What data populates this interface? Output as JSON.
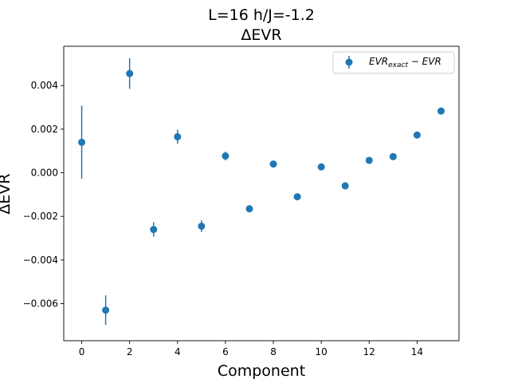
{
  "chart_data": {
    "type": "scatter",
    "title_line1": "L=16 h/J=-1.2",
    "title_line2": "ΔEVR",
    "xlabel": "Component",
    "ylabel": "ΔEVR",
    "xlim": [
      -0.75,
      15.75
    ],
    "ylim": [
      -0.0077,
      0.0058
    ],
    "xticks": [
      0,
      2,
      4,
      6,
      8,
      10,
      12,
      14
    ],
    "xtick_labels": [
      "0",
      "2",
      "4",
      "6",
      "8",
      "10",
      "12",
      "14"
    ],
    "yticks": [
      -0.006,
      -0.004,
      -0.002,
      0.0,
      0.002,
      0.004
    ],
    "ytick_labels": [
      "−0.006",
      "−0.004",
      "−0.002",
      "0.000",
      "0.002",
      "0.004"
    ],
    "legend": {
      "placement": "top-right",
      "label": "EVR_exact − EVR",
      "label_main": "EVR",
      "label_sub": "exact",
      "label_rest": " − EVR"
    },
    "series": [
      {
        "name": "EVR_exact − EVR",
        "color": "#1f77b4",
        "x": [
          0,
          1,
          2,
          3,
          4,
          5,
          6,
          7,
          8,
          9,
          10,
          11,
          12,
          13,
          14,
          15
        ],
        "y": [
          0.0014,
          -0.0063,
          0.00455,
          -0.0026,
          0.00165,
          -0.00245,
          0.00077,
          -0.00165,
          0.0004,
          -0.0011,
          0.00027,
          -0.0006,
          0.00057,
          0.00074,
          0.00173,
          0.00283
        ],
        "yerr": [
          0.00168,
          0.00068,
          0.0007,
          0.00033,
          0.00033,
          0.00027,
          0.0002,
          0.00012,
          8e-05,
          4e-05,
          2e-05,
          3e-05,
          4e-05,
          2e-05,
          2e-05,
          1e-05
        ]
      }
    ]
  }
}
